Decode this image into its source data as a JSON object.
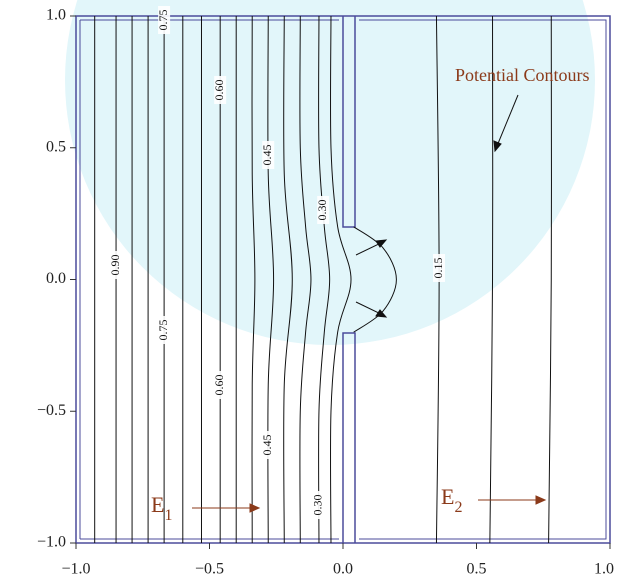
{
  "chart_data": {
    "type": "contour",
    "xlim": [
      -1,
      1
    ],
    "ylim": [
      -1,
      1
    ],
    "xticks": [
      {
        "value": -1,
        "label": "−1.0"
      },
      {
        "value": -0.5,
        "label": "−0.5"
      },
      {
        "value": 0,
        "label": "0.0"
      },
      {
        "value": 0.5,
        "label": "0.5"
      },
      {
        "value": 1,
        "label": "1.0"
      }
    ],
    "yticks": [
      {
        "value": -1,
        "label": "−1.0"
      },
      {
        "value": -0.5,
        "label": "−0.5"
      },
      {
        "value": 0,
        "label": "0.0"
      },
      {
        "value": 0.5,
        "label": "0.5"
      },
      {
        "value": 1,
        "label": "1.0"
      }
    ],
    "color": "#111111",
    "annotation": "Potential Contours",
    "e1": {
      "text": "E",
      "sub": "1"
    },
    "e2": {
      "text": "E",
      "sub": "2"
    },
    "contours": [
      {
        "x": [
          -0.93,
          -0.93
        ],
        "y": [
          1,
          -1
        ]
      },
      {
        "x": [
          -0.85,
          -0.85
        ],
        "y": [
          1,
          -1
        ],
        "level": {
          "value": 0.9,
          "label": "0.90"
        }
      },
      {
        "x": [
          -0.79,
          -0.79
        ],
        "y": [
          1,
          -1
        ]
      },
      {
        "x": [
          -0.73,
          -0.73
        ],
        "y": [
          1,
          -1
        ]
      },
      {
        "x": [
          -0.67,
          -0.67
        ],
        "y": [
          1,
          -1
        ],
        "level": {
          "value": 0.75,
          "label": "0.75"
        }
      },
      {
        "x": [
          -0.6,
          -0.6
        ],
        "y": [
          1,
          -1
        ]
      },
      {
        "x": [
          -0.53,
          -0.53
        ],
        "y": [
          1,
          -1
        ]
      },
      {
        "x": [
          -0.46,
          -0.46
        ],
        "y": [
          1,
          -1
        ],
        "level": {
          "value": 0.6,
          "label": "0.60"
        }
      },
      {
        "x": [
          -0.4,
          -0.4
        ],
        "y": [
          1,
          -1
        ]
      },
      {
        "x": [
          -0.34,
          -0.34,
          -0.33,
          -0.34,
          -0.34
        ],
        "y": [
          1,
          0.4,
          0,
          -0.4,
          -1
        ]
      },
      {
        "x": [
          -0.28,
          -0.28,
          -0.26,
          -0.28,
          -0.28
        ],
        "y": [
          1,
          0.4,
          0,
          -0.4,
          -1
        ],
        "level": {
          "value": 0.45,
          "label": "0.45"
        }
      },
      {
        "x": [
          -0.22,
          -0.22,
          -0.19,
          -0.22,
          -0.22
        ],
        "y": [
          1,
          0.4,
          0,
          -0.4,
          -1
        ]
      },
      {
        "x": [
          -0.16,
          -0.16,
          -0.14,
          -0.12,
          -0.14,
          -0.16,
          -0.16
        ],
        "y": [
          1,
          0.5,
          0.2,
          0,
          -0.2,
          -0.5,
          -1
        ]
      },
      {
        "x": [
          -0.09,
          -0.09,
          -0.07,
          -0.05,
          -0.07,
          -0.09,
          -0.09
        ],
        "y": [
          1,
          0.5,
          0.2,
          0,
          -0.2,
          -0.5,
          -1
        ],
        "level": {
          "value": 0.3,
          "label": "0.30"
        }
      },
      {
        "x": [
          -0.045,
          -0.045,
          -0.02,
          0.03,
          -0.02,
          -0.045,
          -0.045
        ],
        "y": [
          1,
          0.5,
          0.2,
          0,
          -0.2,
          -0.5,
          -1
        ]
      },
      {
        "x": [
          0.04,
          0.15,
          0.2,
          0.15,
          0.04
        ],
        "y": [
          0.2,
          0.12,
          0,
          -0.12,
          -0.2
        ]
      },
      {
        "x": [
          0.35,
          0.36,
          0.35
        ],
        "y": [
          1,
          0,
          -1
        ],
        "level": {
          "value": 0.15,
          "label": "0.15"
        }
      },
      {
        "x": [
          0.56,
          0.56,
          0.55
        ],
        "y": [
          1,
          0,
          -1
        ]
      },
      {
        "x": [
          0.78,
          0.78,
          0.77
        ],
        "y": [
          1,
          0,
          -1
        ]
      }
    ]
  }
}
